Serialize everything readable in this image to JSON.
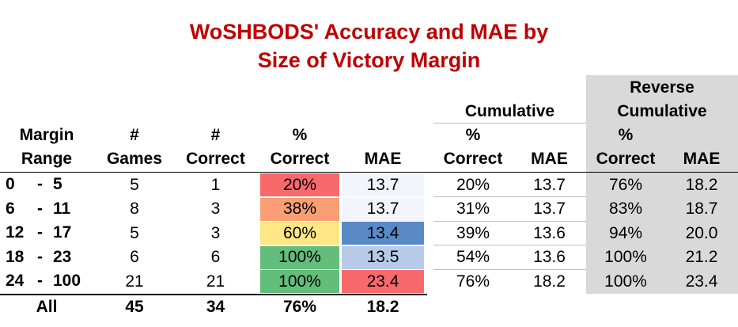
{
  "title_line1": "WoSHBODS' Accuracy and MAE by",
  "title_line2": "Size of Victory Margin",
  "group_headers": {
    "cumulative": "Cumulative",
    "reverse_line1": "Reverse",
    "reverse_line2": "Cumulative"
  },
  "headers": {
    "margin_line1": "Margin",
    "margin_line2": "Range",
    "games_line1": "#",
    "games_line2": "Games",
    "correct_line1": "#",
    "correct_line2": "Correct",
    "pct_line1": "%",
    "pct_line2": "Correct",
    "mae": "MAE",
    "cum_pct_line1": "%",
    "cum_pct_line2": "Correct",
    "cum_mae": "MAE",
    "rev_pct_line1": "%",
    "rev_pct_line2": "Correct",
    "rev_mae": "MAE"
  },
  "rows": [
    {
      "from": "0",
      "dash": "-",
      "to": "5",
      "games": "5",
      "correct": "1",
      "pct": "20%",
      "mae": "13.7",
      "cum_pct": "20%",
      "cum_mae": "13.7",
      "rev_pct": "76%",
      "rev_mae": "18.2",
      "pct_color": "#f8696b",
      "mae_color": "#f2f6fc"
    },
    {
      "from": "6",
      "dash": "-",
      "to": "11",
      "games": "8",
      "correct": "3",
      "pct": "38%",
      "mae": "13.7",
      "cum_pct": "31%",
      "cum_mae": "13.7",
      "rev_pct": "83%",
      "rev_mae": "18.7",
      "pct_color": "#fa9e75",
      "mae_color": "#f2f6fc"
    },
    {
      "from": "12",
      "dash": "-",
      "to": "17",
      "games": "5",
      "correct": "3",
      "pct": "60%",
      "mae": "13.4",
      "cum_pct": "39%",
      "cum_mae": "13.6",
      "rev_pct": "94%",
      "rev_mae": "20.0",
      "pct_color": "#fee784",
      "mae_color": "#5a8ac6"
    },
    {
      "from": "18",
      "dash": "-",
      "to": "23",
      "games": "6",
      "correct": "6",
      "pct": "100%",
      "mae": "13.5",
      "cum_pct": "54%",
      "cum_mae": "13.6",
      "rev_pct": "100%",
      "rev_mae": "21.2",
      "pct_color": "#63be7b",
      "mae_color": "#b7cbe8"
    },
    {
      "from": "24",
      "dash": "-",
      "to": "100",
      "games": "21",
      "correct": "21",
      "pct": "100%",
      "mae": "23.4",
      "cum_pct": "76%",
      "cum_mae": "18.2",
      "rev_pct": "100%",
      "rev_mae": "23.4",
      "pct_color": "#63be7b",
      "mae_color": "#f8696b"
    }
  ],
  "totals": {
    "label": "All",
    "games": "45",
    "correct": "34",
    "pct": "76%",
    "mae": "18.2"
  }
}
